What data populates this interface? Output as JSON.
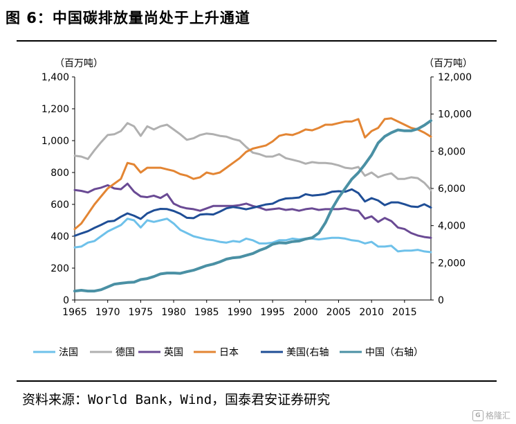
{
  "title": "图 6：中国碳排放量尚处于上升通道",
  "source": "资料来源：World Bank，Wind，国泰君安证券研究",
  "watermark": "格隆汇",
  "chart_data": {
    "type": "line",
    "left_unit": "（百万吨）",
    "right_unit": "（百万吨）",
    "x": [
      1965,
      1966,
      1967,
      1968,
      1969,
      1970,
      1971,
      1972,
      1973,
      1974,
      1975,
      1976,
      1977,
      1978,
      1979,
      1980,
      1981,
      1982,
      1983,
      1984,
      1985,
      1986,
      1987,
      1988,
      1989,
      1990,
      1991,
      1992,
      1993,
      1994,
      1995,
      1996,
      1997,
      1998,
      1999,
      2000,
      2001,
      2002,
      2003,
      2004,
      2005,
      2006,
      2007,
      2008,
      2009,
      2010,
      2011,
      2012,
      2013,
      2014,
      2015,
      2016,
      2017,
      2018,
      2019
    ],
    "xlim": [
      1965,
      2019
    ],
    "x_ticks": [
      "1965",
      "1970",
      "1975",
      "1980",
      "1985",
      "1990",
      "1995",
      "2000",
      "2005",
      "2010",
      "2015"
    ],
    "left_axis": {
      "ylim": [
        0,
        1400
      ],
      "ticks": [
        "0",
        "200",
        "400",
        "600",
        "800",
        "1,000",
        "1,200",
        "1,400"
      ]
    },
    "right_axis": {
      "ylim": [
        0,
        12000
      ],
      "ticks": [
        "0",
        "2,000",
        "4,000",
        "6,000",
        "8,000",
        "10,000",
        "12,000"
      ]
    },
    "legend_position": "bottom",
    "series": [
      {
        "name": "法国",
        "axis": "left",
        "color": "#6ec1ea",
        "values": [
          330,
          335,
          360,
          370,
          400,
          430,
          450,
          470,
          510,
          500,
          455,
          500,
          490,
          500,
          510,
          480,
          440,
          420,
          400,
          390,
          380,
          375,
          365,
          360,
          370,
          365,
          385,
          375,
          355,
          355,
          360,
          375,
          375,
          385,
          380,
          385,
          385,
          380,
          385,
          390,
          390,
          385,
          375,
          370,
          355,
          365,
          335,
          335,
          340,
          305,
          310,
          310,
          315,
          305,
          300
        ]
      },
      {
        "name": "德国",
        "axis": "left",
        "color": "#b0b0b0",
        "values": [
          905,
          900,
          885,
          940,
          990,
          1035,
          1040,
          1060,
          1110,
          1090,
          1030,
          1090,
          1070,
          1090,
          1100,
          1070,
          1040,
          1005,
          1015,
          1035,
          1045,
          1040,
          1030,
          1025,
          1010,
          1000,
          960,
          925,
          915,
          900,
          900,
          915,
          890,
          880,
          870,
          855,
          865,
          860,
          860,
          855,
          845,
          830,
          825,
          835,
          780,
          800,
          770,
          785,
          795,
          760,
          760,
          770,
          765,
          735,
          690
        ]
      },
      {
        "name": "英国",
        "axis": "left",
        "color": "#6a4a94",
        "values": [
          690,
          685,
          675,
          695,
          705,
          720,
          700,
          695,
          730,
          680,
          650,
          645,
          655,
          640,
          665,
          605,
          585,
          575,
          570,
          560,
          575,
          590,
          590,
          590,
          590,
          595,
          605,
          590,
          580,
          565,
          570,
          575,
          565,
          570,
          560,
          570,
          575,
          565,
          570,
          570,
          570,
          575,
          565,
          560,
          510,
          525,
          490,
          515,
          495,
          455,
          445,
          420,
          405,
          395,
          390
        ]
      },
      {
        "name": "日本",
        "axis": "left",
        "color": "#e38533",
        "values": [
          445,
          480,
          540,
          600,
          650,
          700,
          730,
          760,
          860,
          850,
          800,
          830,
          830,
          830,
          820,
          810,
          790,
          780,
          760,
          770,
          800,
          790,
          800,
          830,
          860,
          890,
          930,
          950,
          960,
          970,
          995,
          1030,
          1040,
          1035,
          1050,
          1070,
          1065,
          1080,
          1100,
          1100,
          1110,
          1120,
          1120,
          1135,
          1020,
          1060,
          1080,
          1135,
          1140,
          1120,
          1100,
          1080,
          1070,
          1050,
          1025
        ]
      },
      {
        "name": "美国(右轴",
        "axis": "right",
        "color": "#1f4e96",
        "values": [
          3450,
          3580,
          3700,
          3880,
          4040,
          4220,
          4260,
          4480,
          4660,
          4530,
          4360,
          4660,
          4820,
          4900,
          4890,
          4790,
          4640,
          4420,
          4400,
          4590,
          4620,
          4600,
          4750,
          4930,
          5000,
          4950,
          4880,
          4960,
          5050,
          5140,
          5180,
          5360,
          5460,
          5480,
          5510,
          5690,
          5620,
          5650,
          5700,
          5820,
          5850,
          5820,
          5950,
          5750,
          5300,
          5480,
          5350,
          5100,
          5250,
          5250,
          5150,
          5030,
          5000,
          5150,
          4970
        ]
      },
      {
        "name": "中国（右轴）",
        "axis": "right",
        "color": "#4a90a4",
        "values": [
          480,
          520,
          480,
          480,
          550,
          700,
          850,
          900,
          940,
          960,
          1100,
          1150,
          1260,
          1400,
          1450,
          1450,
          1430,
          1520,
          1600,
          1720,
          1850,
          1930,
          2050,
          2200,
          2270,
          2300,
          2400,
          2500,
          2670,
          2800,
          3000,
          3080,
          3060,
          3140,
          3170,
          3280,
          3350,
          3600,
          4150,
          4900,
          5500,
          6000,
          6500,
          6850,
          7300,
          7800,
          8450,
          8800,
          9000,
          9150,
          9100,
          9100,
          9200,
          9400,
          9650
        ]
      }
    ]
  }
}
